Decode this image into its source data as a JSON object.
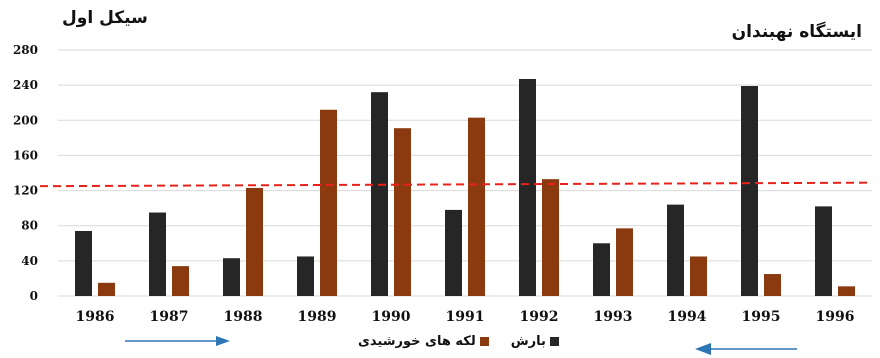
{
  "chart_data": {
    "type": "bar",
    "title_left": "سیکل اول",
    "title_right": "ایستگاه نهبندان",
    "categories": [
      "1986",
      "1987",
      "1988",
      "1989",
      "1990",
      "1991",
      "1992",
      "1993",
      "1994",
      "1995",
      "1996"
    ],
    "series": [
      {
        "name": "بارش",
        "color": "#262626",
        "values": [
          74,
          95,
          43,
          45,
          232,
          98,
          247,
          60,
          104,
          239,
          102
        ]
      },
      {
        "name": "لکه های خورشیدی",
        "color": "#8B3A10",
        "values": [
          15,
          34,
          123,
          212,
          191,
          203,
          133,
          77,
          45,
          25,
          11
        ]
      }
    ],
    "yticks": [
      0,
      40,
      80,
      120,
      160,
      200,
      240,
      280
    ],
    "ylim": [
      0,
      280
    ],
    "grid": true,
    "trend_line": {
      "color": "#e8221b",
      "start": 125,
      "end": 129,
      "style": "dashed"
    },
    "arrows": [
      {
        "direction": "right",
        "color": "#2e75b6"
      },
      {
        "direction": "left",
        "color": "#2e75b6"
      }
    ],
    "legend_position": "bottom"
  }
}
